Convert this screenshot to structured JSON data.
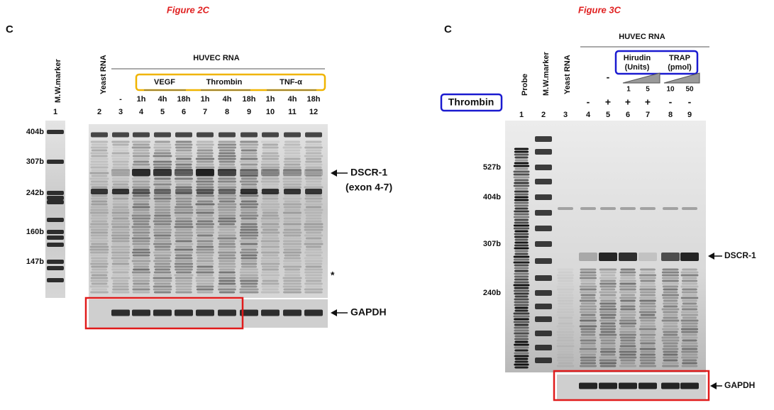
{
  "figure_2c": {
    "title": "Figure 2C",
    "panel": "C",
    "marker_label": "M.W.marker",
    "yeast_label": "Yeast RNA",
    "group_label": "HUVEC RNA",
    "treatments": [
      "VEGF",
      "Thrombin",
      "TNF-α"
    ],
    "times": [
      "-",
      "1h",
      "4h",
      "18h",
      "1h",
      "4h",
      "18h",
      "1h",
      "4h",
      "18h"
    ],
    "lanes": [
      "1",
      "2",
      "3",
      "4",
      "5",
      "6",
      "7",
      "8",
      "9",
      "10",
      "11",
      "12"
    ],
    "size_markers": [
      "404b",
      "307b",
      "242b",
      "160b",
      "147b"
    ],
    "band": [
      "DSCR-1",
      "(exon 4-7)"
    ],
    "asterisk": "*",
    "control": "GAPDH"
  },
  "figure_3c": {
    "title": "Figure 3C",
    "panel": "C",
    "lane_headers": [
      "Probe",
      "M.W.marker",
      "Yeast RNA"
    ],
    "group_label": "HUVEC RNA",
    "hirudin": [
      "Hirudin",
      "(Units)"
    ],
    "trap": [
      "TRAP",
      "(pmol)"
    ],
    "treatment_label": "Thrombin",
    "no_dose": "-",
    "doses": [
      "1",
      "5",
      "10",
      "50"
    ],
    "thrombin_signs": [
      "-",
      "+",
      "+",
      "+",
      "-",
      "-"
    ],
    "lanes": [
      "1",
      "2",
      "3",
      "4",
      "5",
      "6",
      "7",
      "8",
      "9"
    ],
    "size_markers": [
      "527b",
      "404b",
      "307b",
      "240b"
    ],
    "band": "DSCR-1",
    "control": "GAPDH"
  }
}
